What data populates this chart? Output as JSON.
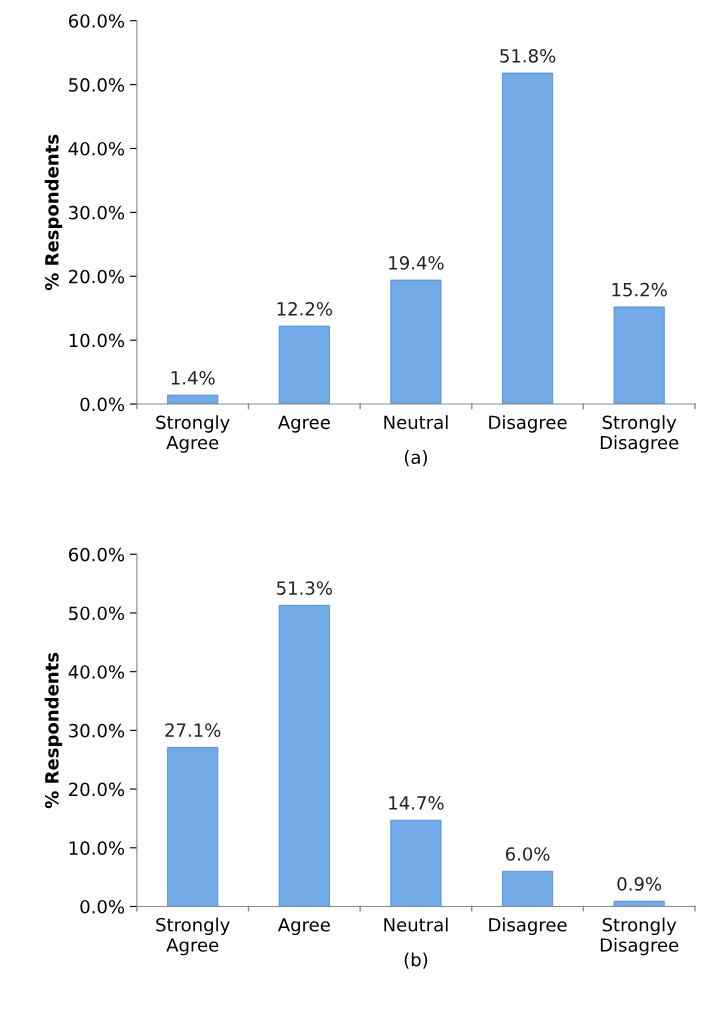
{
  "chart_data": [
    {
      "type": "bar",
      "xlabel": "(a)",
      "ylabel": "% Respondents",
      "categories": [
        "Strongly\nAgree",
        "Agree",
        "Neutral",
        "Disagree",
        "Strongly\nDisagree"
      ],
      "values": [
        1.4,
        12.2,
        19.4,
        51.8,
        15.2
      ],
      "value_labels": [
        "1.4%",
        "12.2%",
        "19.4%",
        "51.8%",
        "15.2%"
      ],
      "color": "#74a9e8",
      "ylim": [
        0,
        60
      ],
      "yticks": [
        {
          "value": 0,
          "label": "0.0%"
        },
        {
          "value": 10,
          "label": "10.0%"
        },
        {
          "value": 20,
          "label": "20.0%"
        },
        {
          "value": 30,
          "label": "30.0%"
        },
        {
          "value": 40,
          "label": "40.0%"
        },
        {
          "value": 50,
          "label": "50.0%"
        },
        {
          "value": 60,
          "label": "60.0%"
        }
      ],
      "grid": false,
      "legend": false
    },
    {
      "type": "bar",
      "xlabel": "(b)",
      "ylabel": "% Respondents",
      "categories": [
        "Strongly\nAgree",
        "Agree",
        "Neutral",
        "Disagree",
        "Strongly\nDisagree"
      ],
      "values": [
        27.1,
        51.3,
        14.7,
        6.0,
        0.9
      ],
      "value_labels": [
        "27.1%",
        "51.3%",
        "14.7%",
        "6.0%",
        "0.9%"
      ],
      "color": "#74a9e8",
      "ylim": [
        0,
        60
      ],
      "yticks": [
        {
          "value": 0,
          "label": "0.0%"
        },
        {
          "value": 10,
          "label": "10.0%"
        },
        {
          "value": 20,
          "label": "20.0%"
        },
        {
          "value": 30,
          "label": "30.0%"
        },
        {
          "value": 40,
          "label": "40.0%"
        },
        {
          "value": 50,
          "label": "50.0%"
        },
        {
          "value": 60,
          "label": "60.0%"
        }
      ],
      "grid": false,
      "legend": false
    }
  ]
}
